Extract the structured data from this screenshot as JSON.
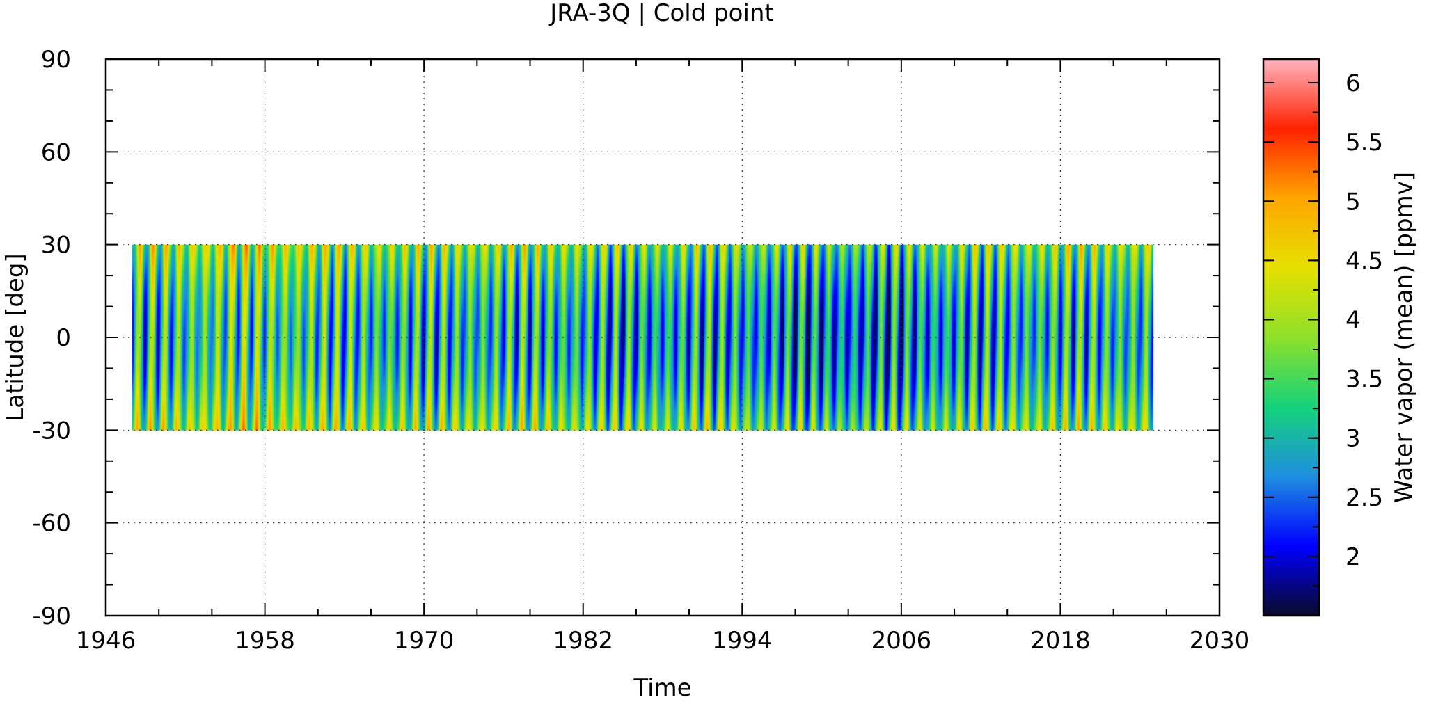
{
  "chart_data": {
    "type": "heatmap",
    "title": "JRA-3Q | Cold point",
    "xlabel": "Time",
    "ylabel": "Latitude [deg]",
    "colorbar_label": "Water vapor (mean) [ppmv]",
    "xlim": [
      1946,
      2030
    ],
    "ylim": [
      -90,
      90
    ],
    "x_ticks": [
      "1946",
      "1958",
      "1970",
      "1982",
      "1994",
      "2006",
      "2018",
      "2030"
    ],
    "y_ticks": [
      "90",
      "60",
      "30",
      "0",
      "-30",
      "-60",
      "-90"
    ],
    "colorbar_range": [
      1.5,
      6.2
    ],
    "colorbar_ticks": [
      "2",
      "2.5",
      "3",
      "3.5",
      "4",
      "4.5",
      "5",
      "5.5",
      "6"
    ],
    "data_extent": {
      "time": [
        1948,
        2025
      ],
      "latitude": [
        -30,
        30
      ]
    },
    "grid": true,
    "colormap": [
      "#0a0a2a",
      "#0000ff",
      "#1e90e0",
      "#14d27a",
      "#8ee02a",
      "#e6e000",
      "#ffa500",
      "#ff2200",
      "#ffb4be"
    ]
  }
}
